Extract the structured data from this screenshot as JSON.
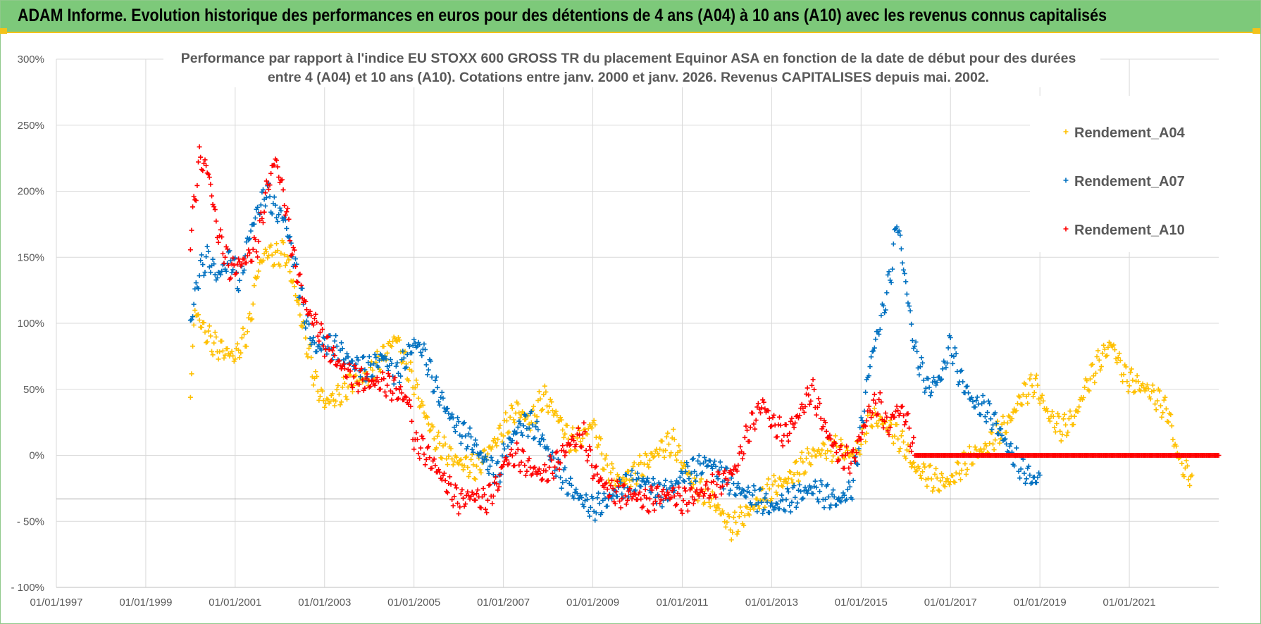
{
  "header": {
    "title": "ADAM Informe. Evolution historique des performances en euros pour des détentions de 4 ans (A04) à 10 ans (A10) avec les revenus connus capitalisés"
  },
  "colors": {
    "banner": "#7dc97a",
    "a04": "#ffc000",
    "a07": "#0070c0",
    "a10": "#ff0000",
    "grid": "#d9d9d9",
    "text": "#595959"
  },
  "chart_data": {
    "type": "scatter",
    "title_line1": "Performance par rapport à l'indice EU STOXX 600 GROSS TR  du placement Equinor ASA en fonction de la date de début pour des durées",
    "title_line2": "entre 4 (A04) et 10 ans (A10).  Cotations entre janv. 2000 et janv. 2026. Revenus CAPITALISES depuis mai. 2002.",
    "xlim": [
      1997.0,
      2023.0
    ],
    "ylim": [
      -100,
      300
    ],
    "y_ticks": [
      300,
      250,
      200,
      150,
      100,
      50,
      0,
      -50,
      -100
    ],
    "y_tick_labels": [
      "300%",
      "250%",
      "200%",
      "150%",
      "100%",
      "50%",
      "0%",
      "- 50%",
      "- 100%"
    ],
    "x_ticks": [
      1997,
      1999,
      2001,
      2003,
      2005,
      2007,
      2009,
      2011,
      2013,
      2015,
      2017,
      2019,
      2021
    ],
    "x_tick_labels": [
      "01/01/1997",
      "01/01/1999",
      "01/01/2001",
      "01/01/2003",
      "01/01/2005",
      "01/01/2007",
      "01/01/2009",
      "01/01/2011",
      "01/01/2013",
      "01/01/2015",
      "01/01/2017",
      "01/01/2019",
      "01/01/2021"
    ],
    "marker": "+",
    "legend_position": "top-right",
    "series": [
      {
        "name": "Rendement_A04",
        "color": "#ffc000",
        "points": [
          [
            2000.0,
            50
          ],
          [
            2000.1,
            110
          ],
          [
            2000.3,
            95
          ],
          [
            2000.5,
            85
          ],
          [
            2000.7,
            80
          ],
          [
            2001.0,
            75
          ],
          [
            2001.3,
            95
          ],
          [
            2001.5,
            140
          ],
          [
            2001.7,
            155
          ],
          [
            2001.9,
            150
          ],
          [
            2002.1,
            155
          ],
          [
            2002.3,
            130
          ],
          [
            2002.6,
            85
          ],
          [
            2002.8,
            55
          ],
          [
            2003.0,
            40
          ],
          [
            2003.3,
            45
          ],
          [
            2003.6,
            55
          ],
          [
            2004.0,
            60
          ],
          [
            2004.3,
            75
          ],
          [
            2004.6,
            90
          ],
          [
            2004.8,
            70
          ],
          [
            2005.0,
            55
          ],
          [
            2005.2,
            35
          ],
          [
            2005.5,
            10
          ],
          [
            2005.8,
            0
          ],
          [
            2006.0,
            -5
          ],
          [
            2006.4,
            -10
          ],
          [
            2006.7,
            5
          ],
          [
            2007.0,
            20
          ],
          [
            2007.3,
            35
          ],
          [
            2007.6,
            25
          ],
          [
            2007.9,
            45
          ],
          [
            2008.2,
            30
          ],
          [
            2008.5,
            10
          ],
          [
            2008.8,
            15
          ],
          [
            2009.0,
            25
          ],
          [
            2009.3,
            -10
          ],
          [
            2009.6,
            -20
          ],
          [
            2009.9,
            -15
          ],
          [
            2010.2,
            -5
          ],
          [
            2010.5,
            5
          ],
          [
            2010.8,
            10
          ],
          [
            2011.0,
            -5
          ],
          [
            2011.3,
            -25
          ],
          [
            2011.6,
            -30
          ],
          [
            2011.9,
            -45
          ],
          [
            2012.1,
            -55
          ],
          [
            2012.4,
            -45
          ],
          [
            2012.7,
            -35
          ],
          [
            2013.0,
            -25
          ],
          [
            2013.3,
            -20
          ],
          [
            2013.6,
            -10
          ],
          [
            2013.9,
            0
          ],
          [
            2014.2,
            5
          ],
          [
            2014.5,
            5
          ],
          [
            2014.8,
            0
          ],
          [
            2015.0,
            10
          ],
          [
            2015.2,
            30
          ],
          [
            2015.5,
            25
          ],
          [
            2015.8,
            15
          ],
          [
            2016.0,
            5
          ],
          [
            2016.2,
            -10
          ],
          [
            2016.5,
            -15
          ],
          [
            2016.7,
            -20
          ],
          [
            2017.0,
            -20
          ],
          [
            2017.2,
            -10
          ],
          [
            2017.5,
            0
          ],
          [
            2017.8,
            5
          ],
          [
            2018.0,
            15
          ],
          [
            2018.3,
            25
          ],
          [
            2018.6,
            45
          ],
          [
            2018.9,
            55
          ],
          [
            2019.0,
            45
          ],
          [
            2019.2,
            30
          ],
          [
            2019.5,
            20
          ],
          [
            2019.8,
            30
          ],
          [
            2020.0,
            50
          ],
          [
            2020.3,
            70
          ],
          [
            2020.6,
            85
          ],
          [
            2020.9,
            60
          ],
          [
            2021.1,
            55
          ],
          [
            2021.4,
            50
          ],
          [
            2021.7,
            40
          ],
          [
            2021.9,
            30
          ],
          [
            2022.0,
            10
          ],
          [
            2022.2,
            -10
          ],
          [
            2022.4,
            -15
          ]
        ]
      },
      {
        "name": "Rendement_A07",
        "color": "#0070c0",
        "points": [
          [
            2000.0,
            100
          ],
          [
            2000.2,
            140
          ],
          [
            2000.4,
            150
          ],
          [
            2000.6,
            135
          ],
          [
            2000.9,
            150
          ],
          [
            2001.1,
            130
          ],
          [
            2001.3,
            165
          ],
          [
            2001.5,
            185
          ],
          [
            2001.7,
            200
          ],
          [
            2001.9,
            185
          ],
          [
            2002.1,
            180
          ],
          [
            2002.3,
            150
          ],
          [
            2002.6,
            100
          ],
          [
            2002.8,
            80
          ],
          [
            2003.0,
            85
          ],
          [
            2003.3,
            80
          ],
          [
            2003.6,
            70
          ],
          [
            2004.0,
            65
          ],
          [
            2004.3,
            75
          ],
          [
            2004.6,
            60
          ],
          [
            2005.0,
            85
          ],
          [
            2005.2,
            80
          ],
          [
            2005.5,
            50
          ],
          [
            2005.8,
            30
          ],
          [
            2006.0,
            20
          ],
          [
            2006.3,
            10
          ],
          [
            2006.6,
            -5
          ],
          [
            2006.9,
            -15
          ],
          [
            2007.0,
            0
          ],
          [
            2007.3,
            20
          ],
          [
            2007.6,
            25
          ],
          [
            2007.9,
            10
          ],
          [
            2008.2,
            -10
          ],
          [
            2008.5,
            -25
          ],
          [
            2008.8,
            -35
          ],
          [
            2009.0,
            -40
          ],
          [
            2009.3,
            -35
          ],
          [
            2009.6,
            -25
          ],
          [
            2009.9,
            -20
          ],
          [
            2010.2,
            -20
          ],
          [
            2010.5,
            -30
          ],
          [
            2010.8,
            -25
          ],
          [
            2011.0,
            -15
          ],
          [
            2011.3,
            -10
          ],
          [
            2011.6,
            -5
          ],
          [
            2011.9,
            -15
          ],
          [
            2012.2,
            -25
          ],
          [
            2012.5,
            -30
          ],
          [
            2012.8,
            -35
          ],
          [
            2013.0,
            -40
          ],
          [
            2013.3,
            -35
          ],
          [
            2013.6,
            -30
          ],
          [
            2013.9,
            -25
          ],
          [
            2014.2,
            -30
          ],
          [
            2014.5,
            -35
          ],
          [
            2014.8,
            -25
          ],
          [
            2015.0,
            20
          ],
          [
            2015.2,
            70
          ],
          [
            2015.5,
            110
          ],
          [
            2015.7,
            145
          ],
          [
            2015.8,
            180
          ],
          [
            2016.0,
            130
          ],
          [
            2016.2,
            80
          ],
          [
            2016.5,
            50
          ],
          [
            2016.8,
            60
          ],
          [
            2017.0,
            85
          ],
          [
            2017.2,
            60
          ],
          [
            2017.5,
            40
          ],
          [
            2017.8,
            35
          ],
          [
            2018.0,
            25
          ],
          [
            2018.3,
            5
          ],
          [
            2018.6,
            -10
          ],
          [
            2018.9,
            -20
          ],
          [
            2019.0,
            -15
          ]
        ]
      },
      {
        "name": "Rendement_A10",
        "color": "#ff0000",
        "points": [
          [
            2000.0,
            165
          ],
          [
            2000.2,
            225
          ],
          [
            2000.4,
            215
          ],
          [
            2000.6,
            170
          ],
          [
            2000.9,
            140
          ],
          [
            2001.1,
            145
          ],
          [
            2001.3,
            150
          ],
          [
            2001.5,
            160
          ],
          [
            2001.7,
            200
          ],
          [
            2001.9,
            225
          ],
          [
            2002.1,
            195
          ],
          [
            2002.3,
            150
          ],
          [
            2002.6,
            110
          ],
          [
            2002.8,
            100
          ],
          [
            2003.0,
            85
          ],
          [
            2003.3,
            70
          ],
          [
            2003.6,
            60
          ],
          [
            2004.0,
            55
          ],
          [
            2004.3,
            55
          ],
          [
            2004.6,
            50
          ],
          [
            2004.9,
            40
          ],
          [
            2005.0,
            10
          ],
          [
            2005.2,
            5
          ],
          [
            2005.5,
            -10
          ],
          [
            2005.8,
            -25
          ],
          [
            2006.0,
            -35
          ],
          [
            2006.3,
            -30
          ],
          [
            2006.6,
            -35
          ],
          [
            2006.9,
            -20
          ],
          [
            2007.0,
            -5
          ],
          [
            2007.3,
            0
          ],
          [
            2007.6,
            -10
          ],
          [
            2007.9,
            -15
          ],
          [
            2008.2,
            -5
          ],
          [
            2008.5,
            10
          ],
          [
            2008.8,
            15
          ],
          [
            2009.0,
            -10
          ],
          [
            2009.3,
            -25
          ],
          [
            2009.6,
            -30
          ],
          [
            2009.9,
            -30
          ],
          [
            2010.2,
            -35
          ],
          [
            2010.5,
            -30
          ],
          [
            2010.8,
            -30
          ],
          [
            2011.0,
            -35
          ],
          [
            2011.3,
            -30
          ],
          [
            2011.6,
            -25
          ],
          [
            2011.9,
            -20
          ],
          [
            2012.2,
            -10
          ],
          [
            2012.5,
            20
          ],
          [
            2012.8,
            40
          ],
          [
            2013.0,
            25
          ],
          [
            2013.3,
            15
          ],
          [
            2013.6,
            30
          ],
          [
            2013.9,
            50
          ],
          [
            2014.2,
            20
          ],
          [
            2014.5,
            0
          ],
          [
            2014.8,
            -5
          ],
          [
            2015.0,
            15
          ],
          [
            2015.2,
            35
          ],
          [
            2015.4,
            40
          ],
          [
            2015.6,
            20
          ],
          [
            2015.8,
            35
          ],
          [
            2016.0,
            30
          ],
          [
            2016.2,
            0
          ],
          [
            2016.6,
            0
          ],
          [
            2017.0,
            0
          ],
          [
            2017.5,
            0
          ],
          [
            2018.0,
            0
          ],
          [
            2018.5,
            0
          ],
          [
            2019.0,
            0
          ],
          [
            2019.5,
            0
          ],
          [
            2020.0,
            0
          ],
          [
            2020.5,
            0
          ],
          [
            2021.0,
            0
          ],
          [
            2021.5,
            0
          ],
          [
            2022.0,
            0
          ],
          [
            2022.5,
            0
          ],
          [
            2023.0,
            0
          ]
        ]
      }
    ]
  }
}
